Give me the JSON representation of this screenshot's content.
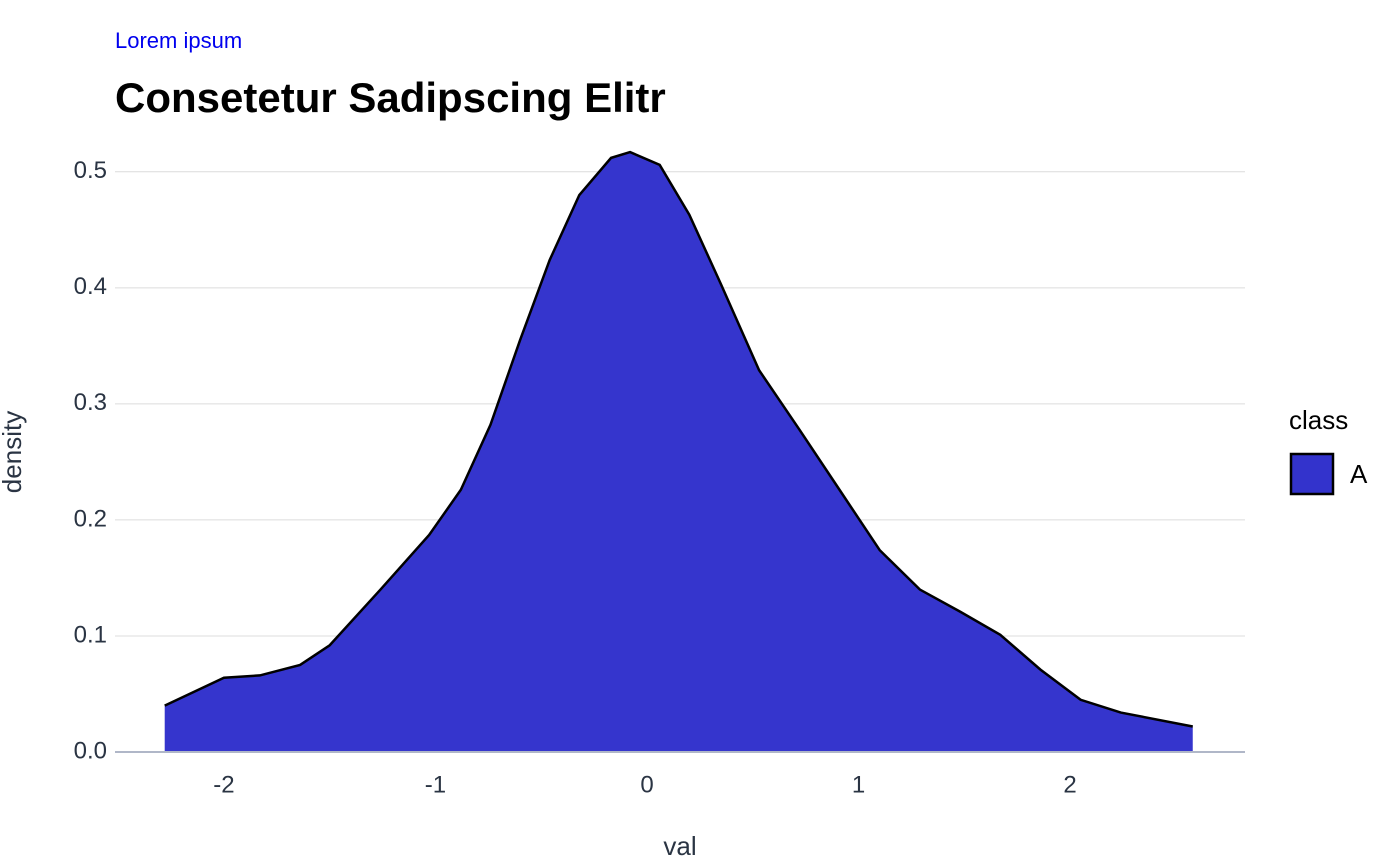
{
  "chart_data": {
    "type": "density",
    "subtitle": "Lorem ipsum",
    "title": "Consetetur Sadipscing Elitr",
    "x_label": "val",
    "y_label": "density",
    "legend_title": "class",
    "legend_position": "right",
    "series": [
      {
        "name": "A",
        "color": "#3333cc",
        "x": [
          -2.28,
          -2,
          -1.83,
          -1.64,
          -1.5,
          -1.26,
          -1.03,
          -0.88,
          -0.74,
          -0.6,
          -0.46,
          -0.32,
          -0.17,
          -0.08,
          0.06,
          0.2,
          0.35,
          0.53,
          0.72,
          0.91,
          1.1,
          1.29,
          1.48,
          1.67,
          1.86,
          2.05,
          2.24,
          2.58
        ],
        "values": [
          0.04,
          0.064,
          0.066,
          0.075,
          0.092,
          0.14,
          0.187,
          0.226,
          0.282,
          0.355,
          0.424,
          0.48,
          0.512,
          0.517,
          0.506,
          0.463,
          0.403,
          0.329,
          0.278,
          0.226,
          0.174,
          0.14,
          0.121,
          0.101,
          0.071,
          0.045,
          0.034,
          0.022
        ]
      }
    ],
    "xlim": [
      -2.515,
      2.827
    ],
    "xticks": [
      -2,
      -1,
      0,
      1,
      2
    ],
    "ylim": [
      0,
      0.53
    ],
    "yticks": [
      {
        "value": 0,
        "label": "0.0"
      },
      0.1,
      0.2,
      0.3,
      0.4,
      0.5
    ],
    "grid": true
  }
}
